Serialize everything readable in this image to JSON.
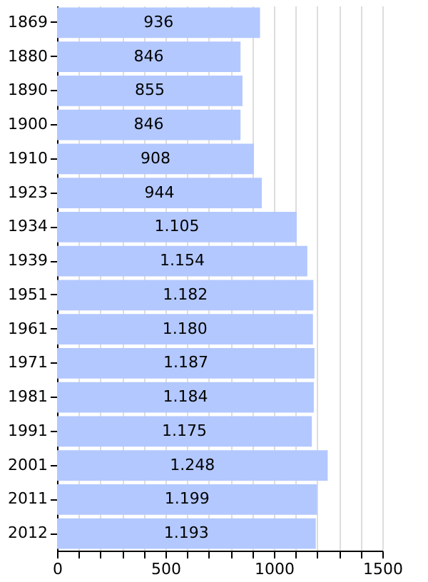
{
  "chart_data": {
    "type": "bar",
    "orientation": "horizontal",
    "categories": [
      "1869",
      "1880",
      "1890",
      "1900",
      "1910",
      "1923",
      "1934",
      "1939",
      "1951",
      "1961",
      "1971",
      "1981",
      "1991",
      "2001",
      "2011",
      "2012"
    ],
    "values": [
      936,
      846,
      855,
      846,
      908,
      944,
      1105,
      1154,
      1182,
      1180,
      1187,
      1184,
      1175,
      1248,
      1199,
      1193
    ],
    "value_labels": [
      "936",
      "846",
      "855",
      "846",
      "908",
      "944",
      "1.105",
      "1.154",
      "1.182",
      "1.180",
      "1.187",
      "1.184",
      "1.175",
      "1.248",
      "1.199",
      "1.193"
    ],
    "color": "#b3c8ff",
    "xlim": [
      0,
      1500
    ],
    "xticks": [
      0,
      {
        "value": 100,
        "label": null
      },
      {
        "value": 200,
        "label": null
      },
      {
        "value": 300,
        "label": null
      },
      {
        "value": 400,
        "label": null
      },
      500,
      {
        "value": 600,
        "label": null
      },
      {
        "value": 700,
        "label": null
      },
      {
        "value": 800,
        "label": null
      },
      {
        "value": 900,
        "label": null
      },
      1000,
      {
        "value": 1100,
        "label": null
      },
      {
        "value": 1200,
        "label": null
      },
      {
        "value": 1300,
        "label": null
      },
      {
        "value": 1400,
        "label": null
      },
      1500
    ],
    "grid": "x"
  }
}
